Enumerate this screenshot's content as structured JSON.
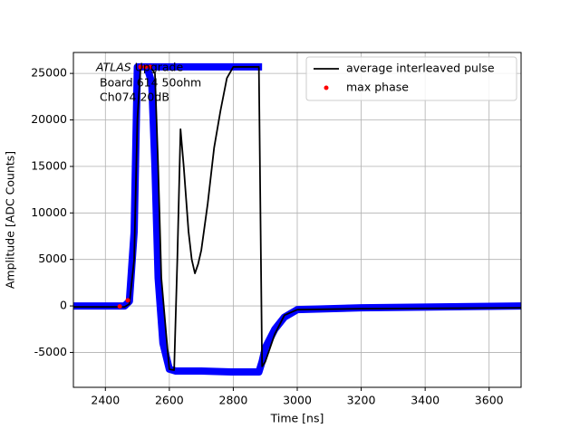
{
  "chart_data": {
    "type": "line",
    "xlabel": "Time [ns]",
    "ylabel": "Amplitude [ADC Counts]",
    "xlim": [
      2300,
      3700
    ],
    "ylim": [
      -8750,
      27250
    ],
    "xticks": [
      2400,
      2600,
      2800,
      3000,
      3200,
      3400,
      3600
    ],
    "yticks": [
      -5000,
      0,
      5000,
      10000,
      15000,
      20000,
      25000
    ],
    "grid": true,
    "legend": "upper right",
    "annotations": [
      "ATLAS",
      "Upgrade",
      "Board 614 50ohm",
      "Ch074 20dB"
    ],
    "series": [
      {
        "style": "line",
        "color": "#0000ff",
        "width": 8,
        "x": [
          2300,
          2460,
          2475,
          2490,
          2500,
          2530,
          2545,
          2555,
          2565,
          2580,
          2600,
          2620,
          2700,
          2800,
          2880,
          2890,
          2900,
          2930,
          2960,
          3000,
          3200,
          3700,
          3700,
          2500,
          2890
        ],
        "values": [
          0,
          0,
          500,
          8000,
          25700,
          25700,
          24000,
          15000,
          3000,
          -4000,
          -6800,
          -7000,
          -7000,
          -7100,
          -7100,
          -6000,
          -4500,
          -2500,
          -1200,
          -400,
          -200,
          0,
          null,
          25700,
          25700
        ]
      },
      {
        "name": "average interleaved pulse",
        "style": "line",
        "color": "#000000",
        "width": 1.8,
        "x": [
          2300,
          2460,
          2475,
          2490,
          2500,
          2510,
          2540,
          2555,
          2565,
          2575,
          2590,
          2600,
          2615,
          2625,
          2635,
          2645,
          2660,
          2670,
          2680,
          2690,
          2700,
          2720,
          2740,
          2760,
          2780,
          2800,
          2880,
          2890,
          2900,
          2930,
          2960,
          3000,
          3200,
          3700
        ],
        "values": [
          -100,
          -100,
          200,
          5000,
          20000,
          25700,
          25700,
          25000,
          15000,
          3000,
          -3000,
          -6800,
          -6900,
          5000,
          19000,
          15000,
          8000,
          5000,
          3500,
          4500,
          6000,
          11000,
          17000,
          21000,
          24500,
          25700,
          25700,
          -6500,
          -6000,
          -3000,
          -1000,
          -400,
          -300,
          -200
        ]
      },
      {
        "name": "max phase",
        "style": "marker",
        "color": "#ff0000",
        "x": [
          2445,
          2470,
          2510,
          2525,
          2540
        ],
        "values": [
          -50,
          600,
          25700,
          25700,
          25700
        ]
      }
    ]
  }
}
